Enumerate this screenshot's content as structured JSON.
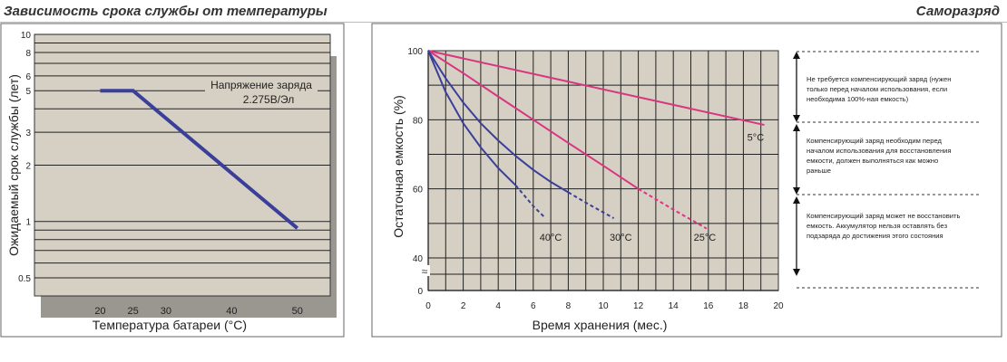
{
  "titles": {
    "left": "Зависимость срока службы от температуры",
    "right": "Саморазряд"
  },
  "chart_data": [
    {
      "type": "line",
      "title": "Зависимость срока службы от температуры",
      "xlabel": "Температура батареи (°C)",
      "ylabel": "Ожидаемый срок службы (лет)",
      "yscale": "log",
      "xlim": [
        10,
        55
      ],
      "ylim": [
        0.4,
        10
      ],
      "xticks": [
        20,
        25,
        30,
        40,
        50
      ],
      "yticks": [
        {
          "value": 10,
          "label": "10"
        },
        {
          "value": 8,
          "label": "8"
        },
        {
          "value": 6,
          "label": "6"
        },
        {
          "value": 5,
          "label": "5"
        },
        {
          "value": 3,
          "label": "3"
        },
        {
          "value": 2,
          "label": "2"
        },
        {
          "value": 1,
          "label": "1"
        },
        {
          "value": 0.5,
          "label": "0.5"
        }
      ],
      "series": [
        {
          "name": "Напряжение заряда 2.275В/Эл",
          "x": [
            20,
            25,
            50
          ],
          "y": [
            5,
            5,
            0.92
          ],
          "color": "#3a3f9a"
        }
      ],
      "annotation": {
        "line1": "Напряжение заряда",
        "line2": "2.275В/Эл"
      }
    },
    {
      "type": "line",
      "title": "Саморазряд",
      "xlabel": "Время хранения (мес.)",
      "ylabel": "Остаточная емкость (%)",
      "xlim": [
        0,
        20
      ],
      "ylim": [
        0,
        100
      ],
      "xticks": [
        0,
        2,
        4,
        6,
        8,
        10,
        12,
        14,
        16,
        18,
        20
      ],
      "yticks": [
        0,
        40,
        60,
        80,
        100
      ],
      "series": [
        {
          "name": "5°C",
          "color": "#d8367f",
          "x": [
            0,
            19.2
          ],
          "y": [
            100,
            78.5
          ],
          "dashed_from": null
        },
        {
          "name": "25°C",
          "color": "#d8367f",
          "x": [
            0,
            2,
            4,
            6,
            8,
            10,
            12,
            13,
            14,
            15.9
          ],
          "y": [
            100,
            93.5,
            86.7,
            80,
            73.3,
            66.7,
            60,
            57,
            54,
            48.5
          ],
          "dashed_from": 12.5
        },
        {
          "name": "30°C",
          "color": "#3a3f9a",
          "x": [
            0,
            1,
            2,
            3,
            4,
            5,
            6,
            7,
            8,
            9,
            10.6
          ],
          "y": [
            100,
            92,
            85,
            79,
            74,
            69.5,
            65.5,
            62,
            59,
            56,
            51.5
          ],
          "dashed_from": 8
        },
        {
          "name": "40°C",
          "color": "#3a3f9a",
          "x": [
            0,
            1,
            2,
            3,
            4,
            5,
            6,
            6.6
          ],
          "y": [
            100,
            88,
            79,
            72,
            66,
            61,
            55,
            52
          ],
          "dashed_from": 5
        }
      ],
      "labels": [
        {
          "text": "5°C",
          "x": 18.7,
          "y": 75
        },
        {
          "text": "25°C",
          "x": 15.8,
          "y": 46
        },
        {
          "text": "30°C",
          "x": 11.0,
          "y": 46
        },
        {
          "text": "40°C",
          "x": 7.0,
          "y": 46
        }
      ],
      "notes": [
        "Не требуется компенсирующий заряд (нужен только перед началом использования, если необходима 100%-ная емкость)",
        "Компенсирующий заряд необходим перед началом использования для восстановления емкости, должен выполняться как можно раньше",
        "Компенсирующий заряд может не восстановить емкость. Аккумулятор нельзя оставлять без подзаряда до достижения этого состояния"
      ],
      "axis_break_symbol": "≈"
    }
  ]
}
